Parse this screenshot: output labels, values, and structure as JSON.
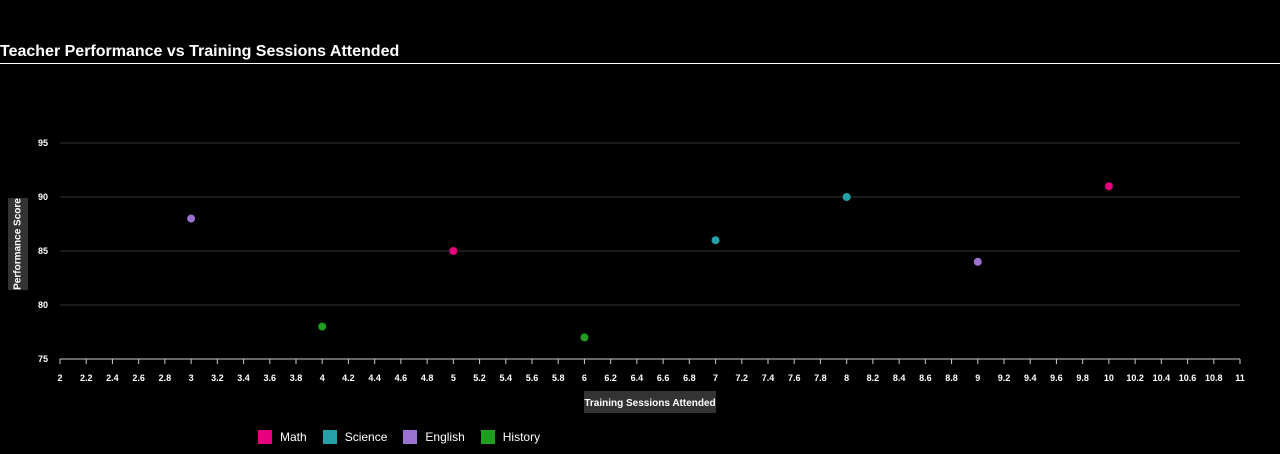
{
  "chart_data": {
    "type": "scatter",
    "title": "Teacher Performance vs Training Sessions Attended",
    "xlabel": "Training Sessions Attended",
    "ylabel": "Performance Score",
    "xlim": [
      2,
      11
    ],
    "ylim": [
      75,
      95
    ],
    "x_tick_step": 0.2,
    "y_ticks": [
      75,
      80,
      85,
      90,
      95
    ],
    "grid": true,
    "legend_position": "bottom-left",
    "background": "#000000",
    "series": [
      {
        "name": "Math",
        "color": "#e6007e",
        "points": [
          [
            5,
            85
          ],
          [
            10,
            91
          ]
        ]
      },
      {
        "name": "Science",
        "color": "#26a0a6",
        "points": [
          [
            7,
            86
          ],
          [
            8,
            90
          ]
        ]
      },
      {
        "name": "English",
        "color": "#9b72cf",
        "points": [
          [
            3,
            88
          ],
          [
            9,
            84
          ]
        ]
      },
      {
        "name": "History",
        "color": "#1f9e1f",
        "points": [
          [
            4,
            78
          ],
          [
            6,
            77
          ]
        ]
      }
    ]
  }
}
